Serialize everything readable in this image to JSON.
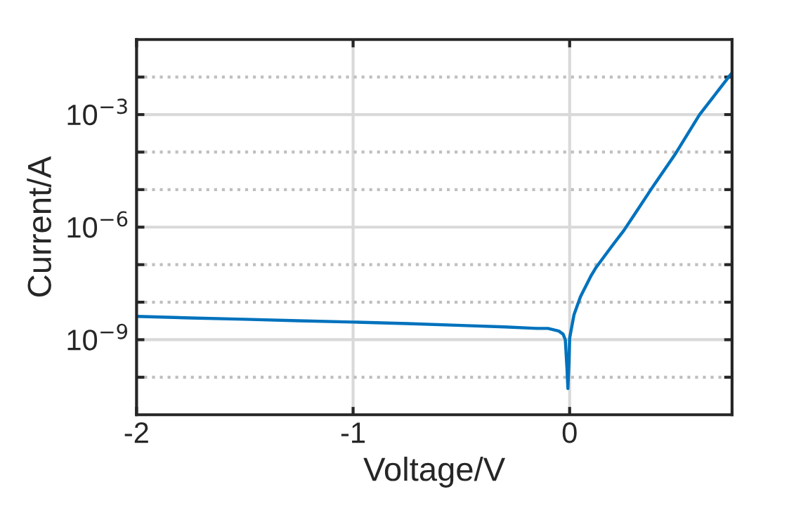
{
  "chart_data": {
    "type": "line",
    "xlabel": "Voltage/V",
    "ylabel": "Current/A",
    "log": "y",
    "grid": true,
    "marker": "none",
    "line_style": "solid",
    "x": [
      -2.0,
      -1.75,
      -1.5,
      -1.25,
      -1.0,
      -0.75,
      -0.5,
      -0.3,
      -0.15,
      -0.1,
      -0.05,
      -0.03,
      -0.02,
      -0.012,
      -0.008,
      -0.003,
      0.0,
      0.02,
      0.05,
      0.1,
      0.12,
      0.2,
      0.25,
      0.3,
      0.38,
      0.49,
      0.6,
      0.74,
      0.75
    ],
    "series": [
      {
        "color": "#0072bd",
        "values": [
          4.2e-09,
          3.8e-09,
          3.5e-09,
          3.2e-09,
          2.95e-09,
          2.7e-09,
          2.4e-09,
          2.2e-09,
          2e-09,
          2e-09,
          1.7e-09,
          1.4e-09,
          1e-09,
          1.6e-10,
          5e-11,
          2.5e-10,
          1.1e-09,
          4.6e-09,
          1.4e-08,
          5.2e-08,
          8.1e-08,
          3.4e-07,
          8.1e-07,
          2.2e-06,
          1.1e-05,
          9.3e-05,
          0.001,
          0.011,
          0.013
        ]
      }
    ],
    "xlim": [
      -2,
      0.75
    ],
    "xticks": [
      -2,
      -1,
      0
    ],
    "ylim": [
      1e-11,
      0.1
    ],
    "yticks": [
      {
        "value": 1e-10,
        "label": null
      },
      {
        "value": 1e-09,
        "label": "10$^{−9}$"
      },
      {
        "value": 1e-08,
        "label": null
      },
      {
        "value": 1e-07,
        "label": null
      },
      {
        "value": 1e-06,
        "label": "10$^{−6}$"
      },
      {
        "value": 1e-05,
        "label": null
      },
      {
        "value": 0.0001,
        "label": null
      },
      {
        "value": 0.001,
        "label": "10$^{−3}$"
      },
      {
        "value": 0.01,
        "label": null
      }
    ]
  }
}
